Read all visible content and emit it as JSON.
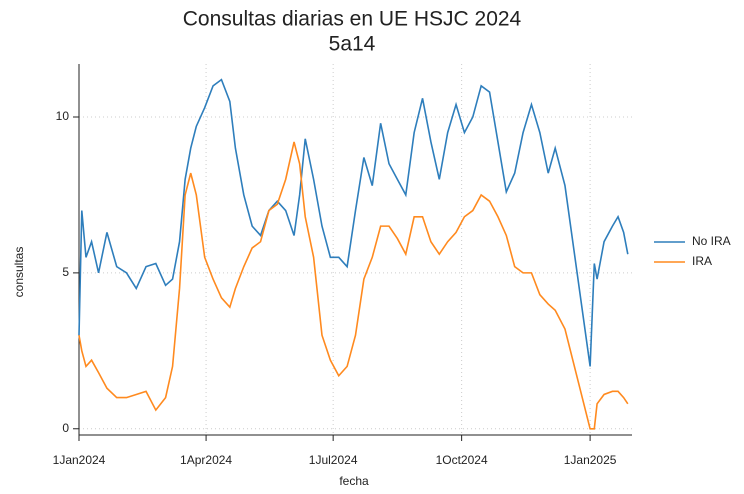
{
  "chart_data": {
    "type": "line",
    "title": "Consultas diarias en UE HSJC 2024",
    "subtitle": "5a14",
    "xlabel": "fecha",
    "ylabel": "consultas",
    "x": [
      "2024-01-01",
      "2024-01-03",
      "2024-01-06",
      "2024-01-10",
      "2024-01-15",
      "2024-01-21",
      "2024-01-28",
      "2024-02-04",
      "2024-02-11",
      "2024-02-18",
      "2024-02-25",
      "2024-03-03",
      "2024-03-08",
      "2024-03-13",
      "2024-03-17",
      "2024-03-21",
      "2024-03-25",
      "2024-03-31",
      "2024-04-06",
      "2024-04-12",
      "2024-04-18",
      "2024-04-22",
      "2024-04-28",
      "2024-05-04",
      "2024-05-10",
      "2024-05-16",
      "2024-05-22",
      "2024-05-28",
      "2024-06-03",
      "2024-06-07",
      "2024-06-11",
      "2024-06-17",
      "2024-06-23",
      "2024-06-29",
      "2024-07-05",
      "2024-07-11",
      "2024-07-17",
      "2024-07-23",
      "2024-07-29",
      "2024-08-04",
      "2024-08-10",
      "2024-08-16",
      "2024-08-22",
      "2024-08-28",
      "2024-09-03",
      "2024-09-09",
      "2024-09-15",
      "2024-09-21",
      "2024-09-27",
      "2024-10-03",
      "2024-10-09",
      "2024-10-15",
      "2024-10-21",
      "2024-10-27",
      "2024-11-02",
      "2024-11-08",
      "2024-11-14",
      "2024-11-20",
      "2024-11-26",
      "2024-12-02",
      "2024-12-07",
      "2024-12-14",
      "2025-01-01",
      "2025-01-04",
      "2025-01-06",
      "2025-01-11",
      "2025-01-17",
      "2025-01-21",
      "2025-01-25",
      "2025-01-28"
    ],
    "series": [
      {
        "name": "No IRA",
        "color": "#2e7ebc",
        "values": [
          3,
          7,
          5.5,
          6,
          5,
          6.3,
          5.2,
          5,
          4.5,
          5.2,
          5.3,
          4.6,
          4.8,
          6,
          8,
          9,
          9.7,
          10.3,
          11,
          11.2,
          10.5,
          9,
          7.5,
          6.5,
          6.2,
          7,
          7.3,
          7,
          6.2,
          7.5,
          9.3,
          8,
          6.5,
          5.5,
          5.5,
          5.2,
          7,
          8.7,
          7.8,
          9.8,
          8.5,
          8,
          7.5,
          9.5,
          10.6,
          9.2,
          8,
          9.5,
          10.4,
          9.5,
          10,
          11,
          10.8,
          9.2,
          7.6,
          8.2,
          9.5,
          10.4,
          9.5,
          8.2,
          9,
          7.8,
          2,
          5.3,
          4.8,
          6,
          6.5,
          6.8,
          6.3,
          5.6
        ]
      },
      {
        "name": "IRA",
        "color": "#ff8a1f",
        "values": [
          3,
          2.5,
          2,
          2.2,
          1.8,
          1.3,
          1,
          1,
          1.1,
          1.2,
          0.6,
          1,
          2,
          4.5,
          7.5,
          8.2,
          7.5,
          5.5,
          4.8,
          4.2,
          3.9,
          4.5,
          5.2,
          5.8,
          6,
          7,
          7.2,
          8,
          9.2,
          8.5,
          6.8,
          5.5,
          3,
          2.2,
          1.7,
          2,
          3,
          4.8,
          5.5,
          6.5,
          6.5,
          6.1,
          5.6,
          6.8,
          6.8,
          6,
          5.6,
          6,
          6.3,
          6.8,
          7,
          7.5,
          7.3,
          6.8,
          6.2,
          5.2,
          5,
          5,
          4.3,
          4,
          3.8,
          3.2,
          0,
          0,
          0.8,
          1.1,
          1.2,
          1.2,
          1,
          0.8
        ]
      }
    ],
    "xlim": [
      "2024-01-01",
      "2025-01-31"
    ],
    "xticks": [
      {
        "value": "2024-01-01",
        "label": "1Jan2024"
      },
      {
        "value": "2024-04-01",
        "label": "1Apr2024"
      },
      {
        "value": "2024-07-01",
        "label": "1Jul2024"
      },
      {
        "value": "2024-10-01",
        "label": "1Oct2024"
      },
      {
        "value": "2025-01-01",
        "label": "1Jan2025"
      }
    ],
    "ylim": [
      -0.2,
      11.7
    ],
    "yticks": [
      0,
      5,
      10
    ],
    "grid": true,
    "legend": "right"
  }
}
